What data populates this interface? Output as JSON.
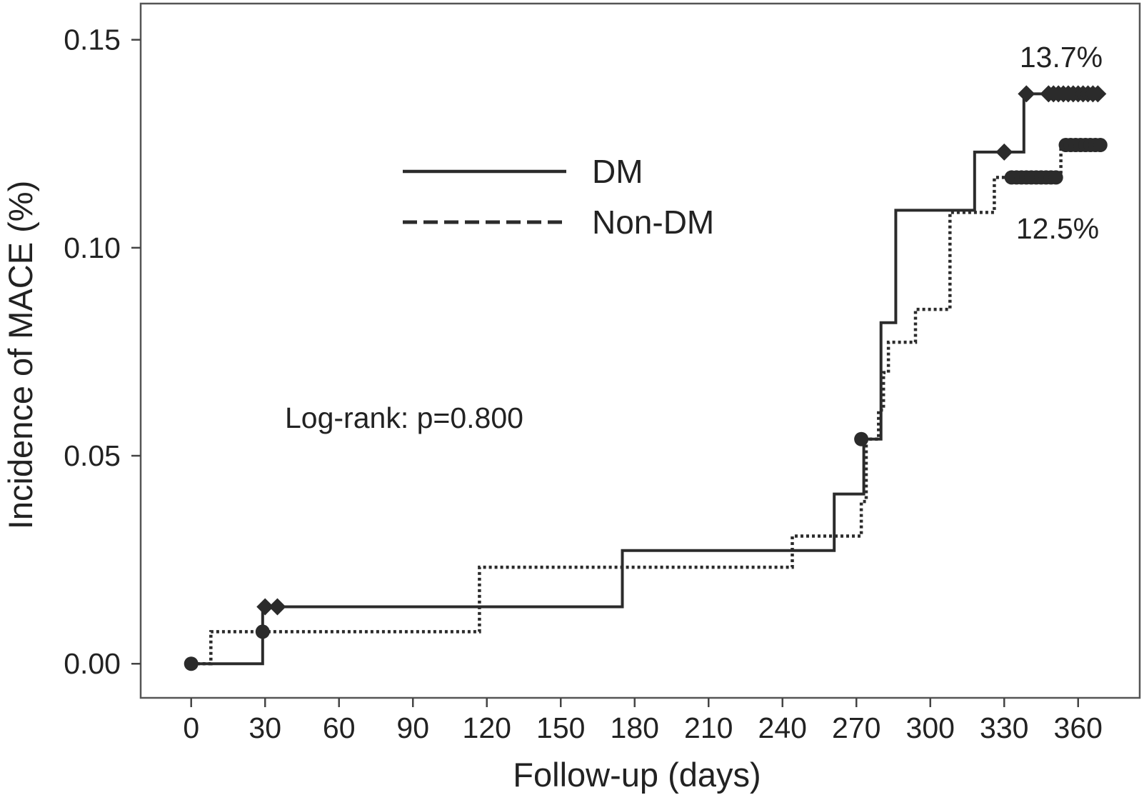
{
  "colors": {
    "ink": "#2b2b2b",
    "frame": "#555555"
  },
  "chart_data": {
    "type": "line",
    "xlabel": "Follow-up (days)",
    "ylabel": "Incidence of MACE (%)",
    "xlim": [
      -20.5,
      385
    ],
    "ylim": [
      -0.0082,
      0.1587
    ],
    "xticks": [
      0,
      30,
      60,
      90,
      120,
      150,
      180,
      210,
      240,
      270,
      300,
      330,
      360
    ],
    "xtick_labels": [
      "0",
      "30",
      "60",
      "90",
      "120",
      "150",
      "180",
      "210",
      "240",
      "270",
      "300",
      "330",
      "360"
    ],
    "yticks": [
      0,
      0.05,
      0.1,
      0.15
    ],
    "ytick_labels": [
      "0.00",
      "0.05",
      "0.10",
      "0.15"
    ],
    "grid": false,
    "legend_placement": "upper-center",
    "series": [
      {
        "name": "DM",
        "line_style": "solid",
        "step": "post",
        "x": [
          0,
          29,
          175,
          261,
          273,
          280,
          286,
          318,
          338,
          369
        ],
        "y": [
          0,
          0.0137,
          0.0272,
          0.0408,
          0.054,
          0.082,
          0.109,
          0.123,
          0.137,
          0.137
        ],
        "censor_marker": "diamond",
        "censored": [
          [
            30,
            0.0137
          ],
          [
            35,
            0.0137
          ],
          [
            330,
            0.123
          ],
          [
            339,
            0.137
          ],
          [
            348,
            0.137
          ],
          [
            350,
            0.137
          ],
          [
            352,
            0.137
          ],
          [
            354,
            0.137
          ],
          [
            356,
            0.137
          ],
          [
            358,
            0.137
          ],
          [
            360,
            0.137
          ],
          [
            362,
            0.137
          ],
          [
            364,
            0.137
          ],
          [
            366,
            0.137
          ],
          [
            368,
            0.137
          ]
        ]
      },
      {
        "name": "Non-DM",
        "line_style": "dotted",
        "step": "post",
        "x": [
          0,
          8,
          117,
          244,
          272,
          274,
          279,
          281,
          283,
          294,
          308,
          326,
          353,
          370
        ],
        "y": [
          0,
          0.0077,
          0.0232,
          0.0307,
          0.039,
          0.054,
          0.061,
          0.07,
          0.0773,
          0.0852,
          0.1085,
          0.1169,
          0.1247,
          0.1247
        ],
        "censor_marker": "circle",
        "censored": [
          [
            0,
            0
          ],
          [
            29,
            0.0077
          ],
          [
            272,
            0.054
          ],
          [
            333,
            0.1169
          ],
          [
            335,
            0.1169
          ],
          [
            337,
            0.1169
          ],
          [
            339,
            0.1169
          ],
          [
            341,
            0.1169
          ],
          [
            343,
            0.1169
          ],
          [
            345,
            0.1169
          ],
          [
            347,
            0.1169
          ],
          [
            349,
            0.1169
          ],
          [
            351,
            0.1169
          ],
          [
            355,
            0.1247
          ],
          [
            357,
            0.1247
          ],
          [
            359,
            0.1247
          ],
          [
            361,
            0.1247
          ],
          [
            363,
            0.1247
          ],
          [
            365,
            0.1247
          ],
          [
            367,
            0.1247
          ],
          [
            369,
            0.1247
          ]
        ]
      }
    ],
    "annotations": {
      "log_rank": "Log-rank: p=0.800",
      "dm_final": "13.7%",
      "non_dm_final": "12.5%"
    }
  }
}
